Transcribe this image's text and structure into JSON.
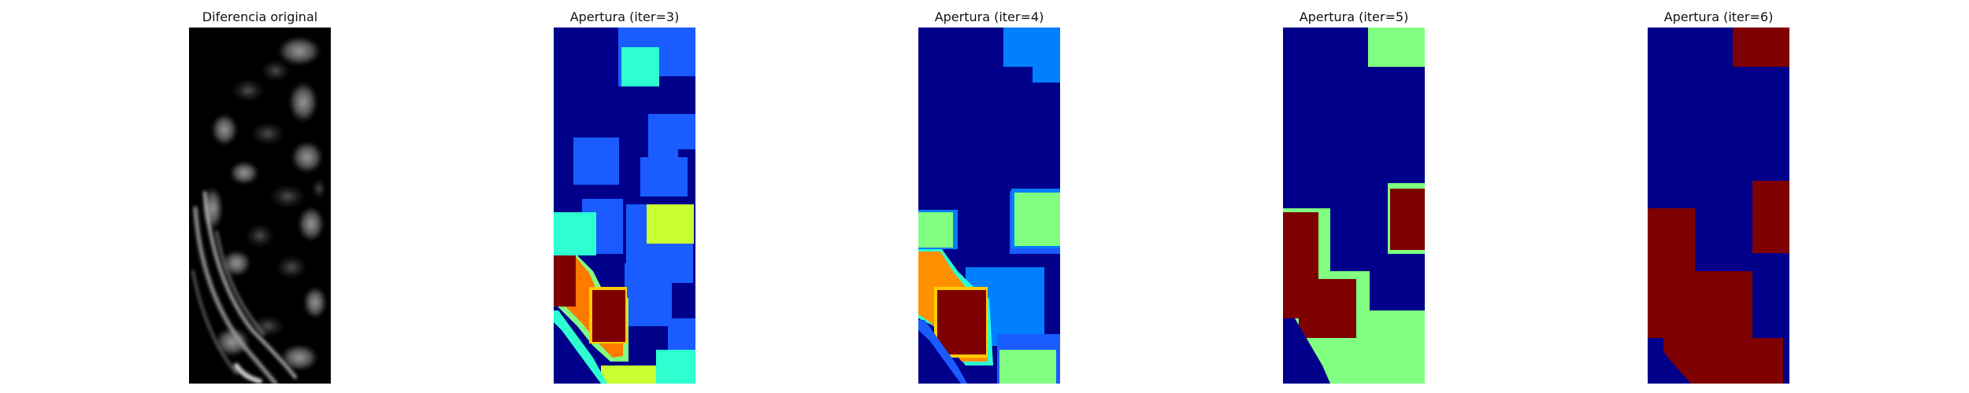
{
  "figure": {
    "panels": [
      {
        "title": "Diferencia original",
        "image": "grayscale-difference-texture"
      },
      {
        "title": "Apertura (iter=3)",
        "image": "jet-colormap-opening"
      },
      {
        "title": "Apertura (iter=4)",
        "image": "jet-colormap-opening"
      },
      {
        "title": "Apertura (iter=5)",
        "image": "jet-colormap-opening"
      },
      {
        "title": "Apertura (iter=6)",
        "image": "jet-colormap-opening"
      }
    ],
    "colormap": {
      "gray_background": "#000000",
      "jet_dark_blue": "#00008b",
      "jet_blue": "#1a5cff",
      "jet_light_blue": "#0080ff",
      "jet_cyan": "#2dffd0",
      "jet_green": "#80ff80",
      "jet_yellow": "#c8ff30",
      "jet_orange": "#ff7a00",
      "jet_dark_red": "#7f0000"
    }
  }
}
